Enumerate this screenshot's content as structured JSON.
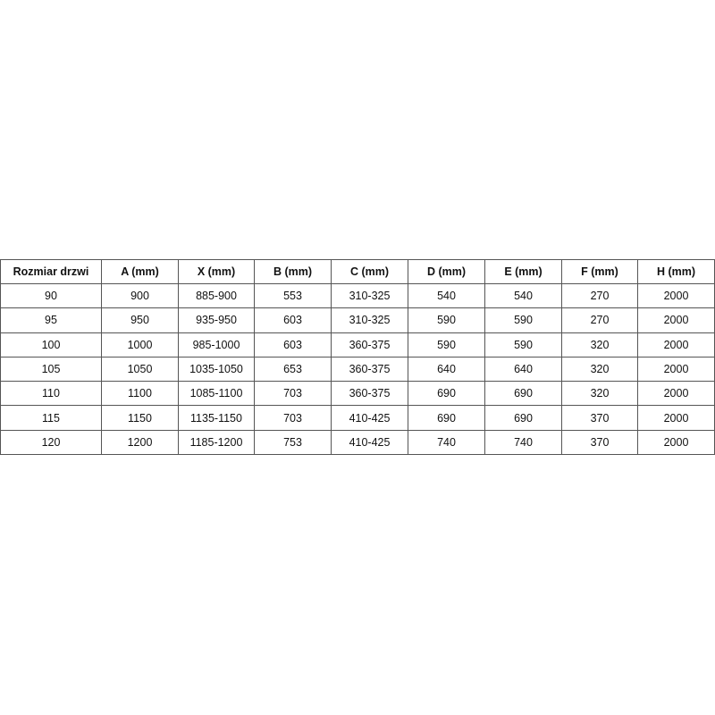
{
  "table": {
    "headers": [
      "Rozmiar drzwi",
      "A (mm)",
      "X (mm)",
      "B (mm)",
      "C (mm)",
      "D (mm)",
      "E (mm)",
      "F (mm)",
      "H (mm)"
    ],
    "rows": [
      [
        "90",
        "900",
        "885-900",
        "553",
        "310-325",
        "540",
        "540",
        "270",
        "2000"
      ],
      [
        "95",
        "950",
        "935-950",
        "603",
        "310-325",
        "590",
        "590",
        "270",
        "2000"
      ],
      [
        "100",
        "1000",
        "985-1000",
        "603",
        "360-375",
        "590",
        "590",
        "320",
        "2000"
      ],
      [
        "105",
        "1050",
        "1035-1050",
        "653",
        "360-375",
        "640",
        "640",
        "320",
        "2000"
      ],
      [
        "110",
        "1100",
        "1085-1100",
        "703",
        "360-375",
        "690",
        "690",
        "320",
        "2000"
      ],
      [
        "115",
        "1150",
        "1135-1150",
        "703",
        "410-425",
        "690",
        "690",
        "370",
        "2000"
      ],
      [
        "120",
        "1200",
        "1185-1200",
        "753",
        "410-425",
        "740",
        "740",
        "370",
        "2000"
      ]
    ]
  }
}
